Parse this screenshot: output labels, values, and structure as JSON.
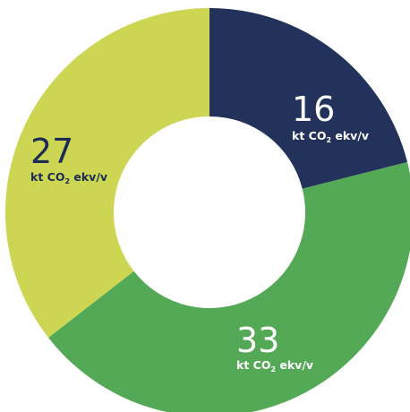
{
  "chart_data": {
    "type": "pie",
    "donut": true,
    "categories": [
      "",
      "",
      ""
    ],
    "values": [
      16,
      33,
      27
    ],
    "value_labels": [
      "16",
      "33",
      "27"
    ],
    "unit_prefix": "kt CO",
    "unit_subscript": "2",
    "unit_suffix": " ekv/v",
    "colors": [
      "#22325a",
      "#54a956",
      "#cdd653"
    ],
    "label_colors": [
      "#ffffff",
      "#ffffff",
      "#1b2b55"
    ],
    "title": "",
    "legend": "none"
  }
}
